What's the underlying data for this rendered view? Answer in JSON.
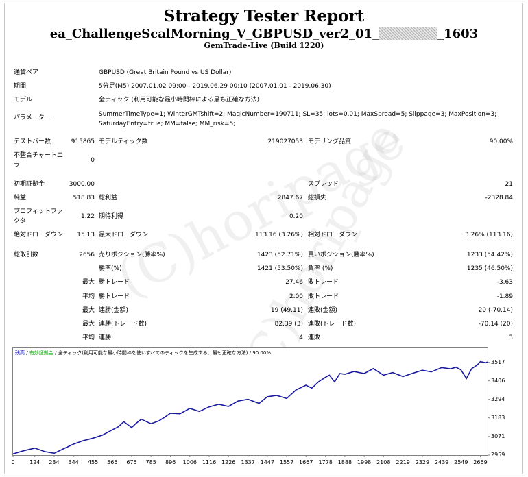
{
  "header": {
    "title": "Strategy Tester Report",
    "ea_name_prefix": "ea_ChallengeScalMorning_V_GBPUSD_ver2_01_",
    "ea_name_suffix": "_1603",
    "server": "GemTrade-Live (Build 1220)"
  },
  "info": {
    "symbol_label": "通貨ペア",
    "symbol_value": "GBPUSD (Great Britain Pound vs US Dollar)",
    "period_label": "期間",
    "period_value": "5分足(M5) 2007.01.02 09:00 - 2019.06.29 00:10 (2007.01.01 - 2019.06.30)",
    "model_label": "モデル",
    "model_value": "全ティック (利用可能な最小時間枠による最も正確な方法)",
    "params_label": "パラメーター",
    "params_line1": "SummerTimeType=1; WinterGMTshift=2; MagicNumber=190711; SL=35; lots=0.01; MaxSpread=5; Slippage=3; MaxPosition=3;",
    "params_line2": "SaturdayEntry=true; MM=false; MM_risk=5;"
  },
  "stats": {
    "bars_label": "テストバー数",
    "bars_value": "915865",
    "ticks_label": "モデルティック数",
    "ticks_value": "219027053",
    "quality_label": "モデリング品質",
    "quality_value": "90.00%",
    "mismatch_label_1": "不整合チャートエ",
    "mismatch_label_2": "ラー",
    "mismatch_value": "0",
    "deposit_label": "初期証拠金",
    "deposit_value": "3000.00",
    "spread_label": "スプレッド",
    "spread_value": "21",
    "net_label": "純益",
    "net_value": "518.83",
    "gross_profit_label": "総利益",
    "gross_profit_value": "2847.67",
    "gross_loss_label": "総損失",
    "gross_loss_value": "-2328.84",
    "pf_label_1": "プロフィットファ",
    "pf_label_2": "クタ",
    "pf_value": "1.22",
    "expected_label": "期待利得",
    "expected_value": "0.20",
    "abs_dd_label": "絶対ドローダウン",
    "abs_dd_value": "15.13",
    "max_dd_label": "最大ドローダウン",
    "max_dd_value": "113.16 (3.26%)",
    "rel_dd_label": "相対ドローダウン",
    "rel_dd_value": "3.26% (113.16)",
    "trades_label": "総取引数",
    "trades_value": "2656",
    "short_label": "売りポジション(勝率%)",
    "short_value": "1423 (52.71%)",
    "long_label": "買いポジション(勝率%)",
    "long_value": "1233 (54.42%)",
    "win_label": "勝率(%)",
    "win_value": "1421 (53.50%)",
    "loss_label": "負率 (%)",
    "loss_value": "1235 (46.50%)",
    "max_word": "最大",
    "avg_word": "平均",
    "largest_win_label": "勝トレード",
    "largest_win_value": "27.46",
    "largest_loss_label": "敗トレード",
    "largest_loss_value": "-3.63",
    "avg_win_label": "勝トレード",
    "avg_win_value": "2.00",
    "avg_loss_label": "敗トレード",
    "avg_loss_value": "-1.89",
    "cons_wins_money_label": "連勝(金額)",
    "cons_wins_money_value": "19 (49.11)",
    "cons_loss_money_label": "連敗(金額)",
    "cons_loss_money_value": "20 (-70.14)",
    "cons_wins_count_label": "連勝(トレード数)",
    "cons_wins_count_value": "82.39 (3)",
    "cons_loss_count_label": "連敗(トレード数)",
    "cons_loss_count_value": "-70.14 (20)",
    "avg_cons_wins_label": "連勝",
    "avg_cons_wins_value": "4",
    "avg_cons_loss_label": "連敗",
    "avg_cons_loss_value": "3"
  },
  "chart_legend": {
    "balance": "残高",
    "sep1": " / ",
    "volume": "有効証拠金",
    "sep2": " / ",
    "rest": "全ティック(利用可能な最小時間枠を使いすべてのティックを生成する、最も正確な方法) / 90.00%"
  },
  "watermark": "(C)horipage",
  "chart_data": {
    "type": "line",
    "title": "",
    "xlabel": "",
    "ylabel": "",
    "color": "#1a1aa0",
    "x_ticks": [
      0,
      124,
      234,
      344,
      455,
      565,
      675,
      785,
      896,
      1006,
      1116,
      1226,
      1337,
      1447,
      1557,
      1667,
      1778,
      1888,
      1998,
      2108,
      2219,
      2329,
      2439,
      2549,
      2659
    ],
    "y_ticks": [
      2959,
      3071,
      3183,
      3294,
      3406,
      3517
    ],
    "xlim": [
      0,
      2700
    ],
    "ylim": [
      2959,
      3545
    ],
    "series": [
      {
        "x": [
          0,
          60,
          124,
          180,
          234,
          290,
          344,
          400,
          455,
          510,
          565,
          600,
          630,
          675,
          700,
          730,
          760,
          785,
          830,
          860,
          896,
          950,
          1006,
          1060,
          1116,
          1170,
          1226,
          1280,
          1337,
          1400,
          1447,
          1500,
          1557,
          1610,
          1667,
          1700,
          1740,
          1778,
          1800,
          1830,
          1860,
          1888,
          1940,
          1998,
          2050,
          2108,
          2160,
          2219,
          2270,
          2329,
          2380,
          2439,
          2490,
          2520,
          2549,
          2580,
          2610,
          2640,
          2659,
          2690,
          2700
        ],
        "values": [
          2966,
          2985,
          3001,
          2980,
          2970,
          2998,
          3025,
          3046,
          3061,
          3080,
          3111,
          3130,
          3160,
          3125,
          3150,
          3175,
          3160,
          3148,
          3165,
          3185,
          3211,
          3208,
          3240,
          3222,
          3249,
          3265,
          3252,
          3284,
          3295,
          3270,
          3310,
          3318,
          3300,
          3351,
          3380,
          3362,
          3402,
          3428,
          3440,
          3400,
          3450,
          3446,
          3462,
          3450,
          3480,
          3440,
          3456,
          3432,
          3450,
          3470,
          3460,
          3486,
          3478,
          3488,
          3472,
          3420,
          3480,
          3500,
          3522,
          3515,
          3520
        ]
      }
    ]
  }
}
